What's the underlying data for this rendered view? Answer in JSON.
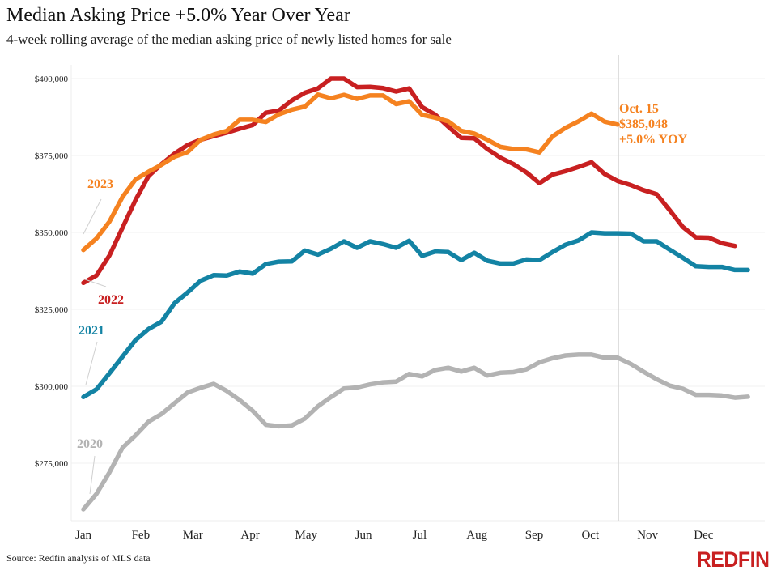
{
  "header": {
    "title": "Median Asking Price +5.0% Year Over Year",
    "subtitle": "4-week rolling average of the median asking price of newly listed homes for sale"
  },
  "footer": {
    "source": "Source: Redfin analysis of MLS data",
    "logo": "REDFIN",
    "logo_color": "#c82021"
  },
  "chart_data": {
    "type": "line",
    "title": "Median Asking Price +5.0% Year Over Year",
    "subtitle": "4-week rolling average of the median asking price of newly listed homes for sale",
    "xlabel": "",
    "ylabel": "",
    "x_unit": "week of year",
    "x_range": [
      1,
      53
    ],
    "x_ticks": [
      {
        "label": "Jan",
        "week": 1
      },
      {
        "label": "Feb",
        "week": 5.4
      },
      {
        "label": "Mar",
        "week": 9.4
      },
      {
        "label": "Apr",
        "week": 13.8
      },
      {
        "label": "May",
        "week": 18.1
      },
      {
        "label": "Jun",
        "week": 22.5
      },
      {
        "label": "Jul",
        "week": 26.8
      },
      {
        "label": "Aug",
        "week": 31.2
      },
      {
        "label": "Sep",
        "week": 35.6
      },
      {
        "label": "Oct",
        "week": 39.9
      },
      {
        "label": "Nov",
        "week": 44.3
      },
      {
        "label": "Dec",
        "week": 48.6
      }
    ],
    "ylim": [
      255000,
      405000
    ],
    "y_ticks": [
      {
        "label": "$275,000",
        "value": 275000
      },
      {
        "label": "$300,000",
        "value": 300000
      },
      {
        "label": "$325,000",
        "value": 325000
      },
      {
        "label": "$350,000",
        "value": 350000
      },
      {
        "label": "$375,000",
        "value": 375000
      },
      {
        "label": "$400,000",
        "value": 400000
      }
    ],
    "grid": "horizontal",
    "reference_line": {
      "week": 42,
      "label": "Oct. 15"
    },
    "annotation": {
      "lines": [
        "Oct. 15",
        "$385,048",
        "+5.0% YOY"
      ],
      "color": "#f58220"
    },
    "series": [
      {
        "name": "2020",
        "label": "2020",
        "color": "#b3b3b3",
        "start_week": 1,
        "values": [
          260000,
          265000,
          272000,
          280000,
          284000,
          288500,
          291000,
          294500,
          298000,
          299500,
          300800,
          298500,
          295500,
          292000,
          287500,
          287000,
          287300,
          289500,
          293500,
          296500,
          299300,
          299600,
          300600,
          301300,
          301500,
          304000,
          303200,
          305300,
          306000,
          304800,
          306000,
          303500,
          304400,
          304600,
          305500,
          307800,
          309100,
          310000,
          310300,
          310300,
          309300,
          309300,
          307300,
          304700,
          302300,
          300200,
          299200,
          297200,
          297200,
          297000,
          296300,
          296600
        ]
      },
      {
        "name": "2021",
        "label": "2021",
        "color": "#1383a4",
        "start_week": 1,
        "values": [
          296500,
          299000,
          304200,
          309600,
          315000,
          318600,
          321000,
          327000,
          330500,
          334300,
          336100,
          336000,
          337300,
          336600,
          339700,
          340500,
          340600,
          344100,
          342800,
          344700,
          347100,
          345000,
          347100,
          346200,
          345000,
          347300,
          342400,
          343800,
          343600,
          341000,
          343400,
          340800,
          339900,
          339900,
          341200,
          341000,
          343600,
          346000,
          347400,
          350000,
          349700,
          349700,
          349600,
          347100,
          347100,
          344400,
          341800,
          339000,
          338800,
          338800,
          337800,
          337800
        ]
      },
      {
        "name": "2022",
        "label": "2022",
        "color": "#c82021",
        "start_week": 1,
        "values": [
          333600,
          336000,
          342500,
          351500,
          360500,
          368300,
          372200,
          375600,
          378400,
          380100,
          381300,
          382400,
          383700,
          384900,
          388900,
          389600,
          392900,
          395400,
          396800,
          400000,
          400000,
          397200,
          397300,
          396900,
          395800,
          396800,
          390700,
          388300,
          384400,
          380700,
          380600,
          377100,
          374300,
          372200,
          369500,
          366000,
          368800,
          369900,
          371300,
          372800,
          369000,
          366700,
          365400,
          363700,
          362400,
          357200,
          351800,
          348400,
          348300,
          346500,
          345600
        ]
      },
      {
        "name": "2023",
        "label": "2023",
        "color": "#f58220",
        "start_week": 1,
        "end_week": 42,
        "values": [
          344300,
          348000,
          353500,
          361500,
          367200,
          369700,
          372000,
          374600,
          376100,
          380100,
          381800,
          383000,
          386600,
          386600,
          385900,
          388400,
          389900,
          390900,
          394800,
          393600,
          394700,
          393400,
          394500,
          394500,
          391700,
          392600,
          388200,
          387300,
          386100,
          383000,
          382100,
          380100,
          377800,
          377100,
          377000,
          376000,
          381200,
          384000,
          386100,
          388600,
          386000,
          385048
        ]
      }
    ]
  }
}
